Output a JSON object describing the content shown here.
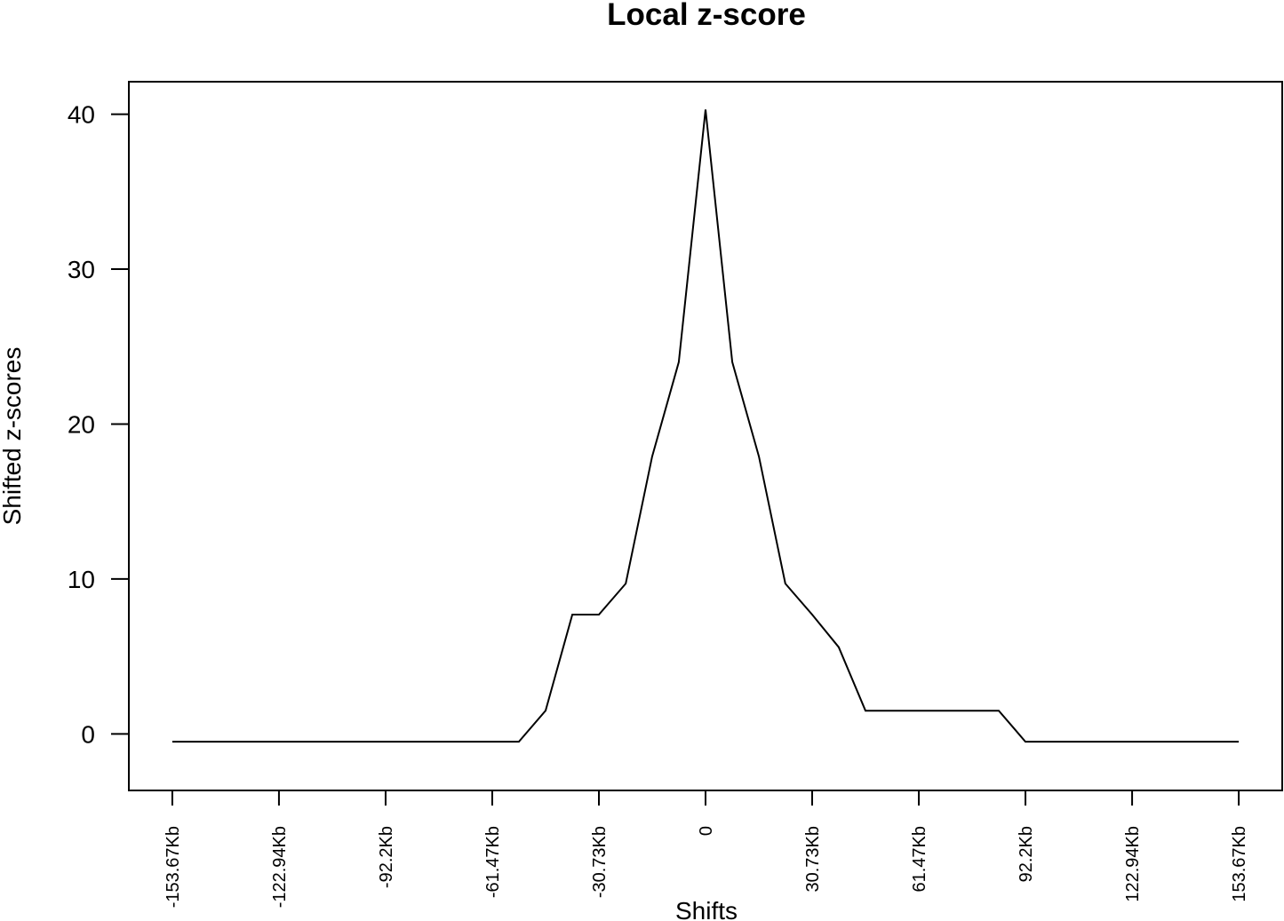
{
  "chart_data": {
    "type": "line",
    "title": "Local z-score",
    "xlabel": "Shifts",
    "ylabel": "Shifted z-scores",
    "x_tick_labels": [
      "-153.67Kb",
      "-122.94Kb",
      "-92.2Kb",
      "-61.47Kb",
      "-30.73Kb",
      "0",
      "30.73Kb",
      "61.47Kb",
      "92.2Kb",
      "122.94Kb",
      "153.67Kb"
    ],
    "x_tick_values_kb": [
      -153.67,
      -122.94,
      -92.2,
      -61.47,
      -30.73,
      0,
      30.73,
      61.47,
      92.2,
      122.94,
      153.67
    ],
    "xlim_kb": [
      -166.2,
      166.2
    ],
    "y_ticks": [
      0,
      10,
      20,
      30,
      40
    ],
    "ylim": [
      -3.65,
      42.1
    ],
    "grid": false,
    "legend": "none",
    "line_color": "#000000",
    "series": [
      {
        "x_kb": [
          -153.67,
          -146.0,
          -138.3,
          -130.6,
          -122.94,
          -115.3,
          -107.6,
          -99.9,
          -92.2,
          -84.5,
          -76.8,
          -69.1,
          -61.47,
          -53.8,
          -46.1,
          -38.4,
          -30.73,
          -23.0,
          -15.4,
          -7.7,
          0,
          7.7,
          15.4,
          23.0,
          30.73,
          38.4,
          46.1,
          53.8,
          61.47,
          69.1,
          76.8,
          84.5,
          92.2,
          99.9,
          107.6,
          115.3,
          122.94,
          130.6,
          138.3,
          146.0,
          153.67
        ],
        "y": [
          -0.5,
          -0.5,
          -0.5,
          -0.5,
          -0.5,
          -0.5,
          -0.5,
          -0.5,
          -0.5,
          -0.5,
          -0.5,
          -0.5,
          -0.5,
          -0.5,
          1.5,
          7.7,
          7.7,
          9.7,
          17.9,
          24.0,
          40.3,
          24.0,
          17.9,
          9.7,
          7.7,
          5.6,
          1.5,
          1.5,
          1.5,
          1.5,
          1.5,
          1.5,
          -0.5,
          -0.5,
          -0.5,
          -0.5,
          -0.5,
          -0.5,
          -0.5,
          -0.5,
          -0.5
        ]
      }
    ]
  }
}
